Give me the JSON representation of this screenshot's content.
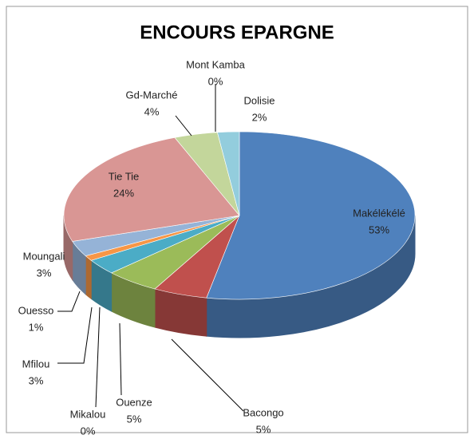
{
  "chart_data": {
    "type": "pie3d",
    "title": "ENCOURS EPARGNE",
    "categories": [
      "Makélékélé",
      "Bacongo",
      "Ouenze",
      "Mikalou",
      "Mfilou",
      "Ouesso",
      "Moungali",
      "Tie Tie",
      "Gd-Marché",
      "Mont Kamba",
      "Dolisie"
    ],
    "values": [
      53,
      5,
      5,
      0,
      3,
      1,
      3,
      24,
      4,
      0,
      2
    ],
    "value_labels": [
      "53%",
      "5%",
      "5%",
      "0%",
      "3%",
      "1%",
      "3%",
      "24%",
      "4%",
      "0%",
      "2%"
    ],
    "colors": [
      "#4f81bd",
      "#c0504d",
      "#9bbb59",
      "#8064a2",
      "#4bacc6",
      "#f79646",
      "#95b3d7",
      "#d99694",
      "#c3d69b",
      "#b3a2c7",
      "#93cddd"
    ]
  }
}
